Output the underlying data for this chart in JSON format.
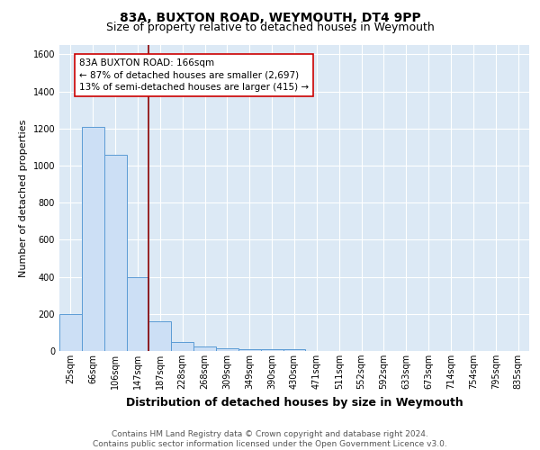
{
  "title": "83A, BUXTON ROAD, WEYMOUTH, DT4 9PP",
  "subtitle": "Size of property relative to detached houses in Weymouth",
  "xlabel": "Distribution of detached houses by size in Weymouth",
  "ylabel": "Number of detached properties",
  "bar_labels": [
    "25sqm",
    "66sqm",
    "106sqm",
    "147sqm",
    "187sqm",
    "228sqm",
    "268sqm",
    "309sqm",
    "349sqm",
    "390sqm",
    "430sqm",
    "471sqm",
    "511sqm",
    "552sqm",
    "592sqm",
    "633sqm",
    "673sqm",
    "714sqm",
    "754sqm",
    "795sqm",
    "835sqm"
  ],
  "bar_values": [
    200,
    1210,
    1060,
    400,
    160,
    50,
    22,
    15,
    8,
    10,
    10,
    0,
    0,
    0,
    0,
    0,
    0,
    0,
    0,
    0,
    0
  ],
  "bar_color": "#ccdff5",
  "bar_edge_color": "#5b9bd5",
  "background_color": "#dce9f5",
  "grid_color": "#ffffff",
  "annotation_line_color": "#8B0000",
  "annotation_box_text": "83A BUXTON ROAD: 166sqm\n← 87% of detached houses are smaller (2,697)\n13% of semi-detached houses are larger (415) →",
  "annotation_box_color": "#ffffff",
  "annotation_box_edge_color": "#cc0000",
  "ylim": [
    0,
    1650
  ],
  "yticks": [
    0,
    200,
    400,
    600,
    800,
    1000,
    1200,
    1400,
    1600
  ],
  "footer_line1": "Contains HM Land Registry data © Crown copyright and database right 2024.",
  "footer_line2": "Contains public sector information licensed under the Open Government Licence v3.0.",
  "title_fontsize": 10,
  "subtitle_fontsize": 9,
  "xlabel_fontsize": 9,
  "ylabel_fontsize": 8,
  "tick_fontsize": 7,
  "annotation_fontsize": 7.5,
  "footer_fontsize": 6.5
}
